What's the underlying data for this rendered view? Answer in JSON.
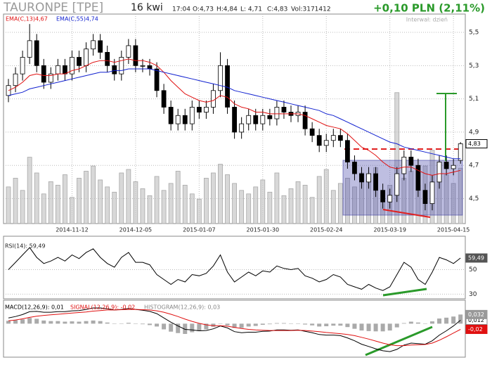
{
  "header": {
    "ticker": "TAURONPE [TPE]",
    "date": "16 kwi",
    "time": "17:04",
    "open": "O:4,73",
    "high": "H:4,84",
    "low": "L: 4,71",
    "close": "C:4,83",
    "volume": "Vol:3171412",
    "change": "+0,10 PLN (2,11%)",
    "interval": "Interwał: dzień"
  },
  "chart_data": [
    {
      "type": "candlestick",
      "open": [
        5.12,
        5.18,
        5.25,
        5.35,
        5.45,
        5.3,
        5.2,
        5.25,
        5.3,
        5.25,
        5.35,
        5.3,
        5.4,
        5.45,
        5.38,
        5.3,
        5.25,
        5.35,
        5.42,
        5.3,
        5.3,
        5.28,
        5.15,
        5.05,
        4.95,
        5.0,
        4.95,
        5.05,
        5.02,
        5.05,
        5.15,
        5.3,
        5.05,
        4.9,
        4.95,
        5.0,
        4.95,
        5.0,
        4.98,
        5.05,
        5.02,
        5.0,
        5.02,
        4.92,
        4.88,
        4.82,
        4.85,
        4.88,
        4.85,
        4.72,
        4.65,
        4.6,
        4.65,
        4.55,
        4.48,
        4.52,
        4.65,
        4.75,
        4.7,
        4.55,
        4.47,
        4.6,
        4.72,
        4.68,
        4.73
      ],
      "high": [
        5.22,
        5.29,
        5.39,
        5.55,
        5.49,
        5.34,
        5.29,
        5.34,
        5.34,
        5.39,
        5.39,
        5.44,
        5.49,
        5.49,
        5.42,
        5.34,
        5.39,
        5.46,
        5.46,
        5.34,
        5.34,
        5.32,
        5.19,
        5.09,
        5.04,
        5.04,
        5.09,
        5.09,
        5.09,
        5.19,
        5.38,
        5.34,
        5.09,
        4.99,
        5.04,
        5.04,
        5.04,
        5.04,
        5.09,
        5.09,
        5.06,
        5.06,
        5.06,
        4.96,
        4.92,
        4.89,
        4.92,
        4.92,
        4.89,
        4.76,
        4.69,
        4.69,
        4.69,
        4.59,
        4.56,
        4.69,
        4.79,
        4.79,
        4.74,
        4.59,
        4.64,
        4.76,
        4.76,
        4.74,
        4.84
      ],
      "low": [
        5.08,
        5.14,
        5.21,
        5.31,
        5.26,
        5.16,
        5.16,
        5.21,
        5.21,
        5.21,
        5.26,
        5.26,
        5.36,
        5.34,
        5.26,
        5.21,
        5.21,
        5.31,
        5.26,
        5.26,
        5.24,
        5.11,
        5.01,
        4.91,
        4.91,
        4.91,
        4.91,
        4.98,
        4.98,
        5.01,
        5.11,
        5.01,
        4.86,
        4.86,
        4.91,
        4.91,
        4.91,
        4.94,
        4.94,
        4.98,
        4.96,
        4.96,
        4.88,
        4.84,
        4.78,
        4.78,
        4.81,
        4.81,
        4.68,
        4.61,
        4.56,
        4.56,
        4.51,
        4.44,
        4.44,
        4.48,
        4.61,
        4.66,
        4.51,
        4.43,
        4.43,
        4.56,
        4.64,
        4.64,
        4.71
      ],
      "close": [
        5.18,
        5.25,
        5.35,
        5.45,
        5.3,
        5.2,
        5.25,
        5.3,
        5.25,
        5.35,
        5.3,
        5.4,
        5.45,
        5.38,
        5.3,
        5.25,
        5.35,
        5.42,
        5.3,
        5.3,
        5.28,
        5.15,
        5.05,
        4.95,
        5.0,
        4.95,
        5.05,
        5.02,
        5.05,
        5.15,
        5.3,
        5.05,
        4.9,
        4.95,
        5.0,
        4.95,
        5.0,
        4.98,
        5.05,
        5.02,
        5.0,
        5.02,
        4.92,
        4.88,
        4.82,
        4.85,
        4.88,
        4.85,
        4.72,
        4.65,
        4.6,
        4.65,
        4.55,
        4.48,
        4.52,
        4.65,
        4.75,
        4.7,
        4.55,
        4.47,
        4.6,
        4.72,
        4.68,
        4.7,
        4.83
      ],
      "last_label": "4,83",
      "volume": [
        2100000,
        2600000,
        1900000,
        3800000,
        2900000,
        1700000,
        2400000,
        2200000,
        2800000,
        1500000,
        2600000,
        3000000,
        3300000,
        2500000,
        2100000,
        1800000,
        2900000,
        3100000,
        2400000,
        2000000,
        1600000,
        2700000,
        1900000,
        2300000,
        3000000,
        2200000,
        1700000,
        1400000,
        2600000,
        2900000,
        3400000,
        2800000,
        2300000,
        1900000,
        1700000,
        2100000,
        2500000,
        1800000,
        2900000,
        1600000,
        2000000,
        2400000,
        2200000,
        1500000,
        2700000,
        3100000,
        1900000,
        2300000,
        2600000,
        2100000,
        2900000,
        2400000,
        3200000,
        1800000,
        2200000,
        7500000,
        2600000,
        3000000,
        2200000,
        3300000,
        4200000,
        2600000,
        2800000,
        2300000,
        3171412
      ],
      "volume_lim": [
        0,
        12000000
      ],
      "series": [
        {
          "name": "EMA(C,13)4,67",
          "color": "#e01010",
          "values": [
            5.15,
            5.17,
            5.2,
            5.24,
            5.25,
            5.24,
            5.24,
            5.25,
            5.25,
            5.27,
            5.28,
            5.3,
            5.32,
            5.33,
            5.33,
            5.32,
            5.33,
            5.34,
            5.33,
            5.33,
            5.32,
            5.3,
            5.26,
            5.21,
            5.17,
            5.13,
            5.11,
            5.09,
            5.08,
            5.09,
            5.12,
            5.11,
            5.07,
            5.05,
            5.04,
            5.02,
            5.02,
            5.01,
            5.01,
            5.01,
            5.01,
            5.01,
            5.0,
            4.98,
            4.96,
            4.94,
            4.93,
            4.92,
            4.89,
            4.85,
            4.81,
            4.79,
            4.76,
            4.72,
            4.69,
            4.68,
            4.69,
            4.69,
            4.67,
            4.65,
            4.64,
            4.65,
            4.65,
            4.66,
            4.67
          ]
        },
        {
          "name": "EMA(C,55)4,74",
          "color": "#1020d0",
          "values": [
            5.12,
            5.13,
            5.14,
            5.16,
            5.17,
            5.18,
            5.19,
            5.2,
            5.21,
            5.22,
            5.23,
            5.24,
            5.25,
            5.26,
            5.26,
            5.27,
            5.27,
            5.28,
            5.28,
            5.28,
            5.28,
            5.27,
            5.26,
            5.25,
            5.24,
            5.23,
            5.22,
            5.21,
            5.2,
            5.19,
            5.18,
            5.17,
            5.15,
            5.14,
            5.13,
            5.12,
            5.11,
            5.1,
            5.09,
            5.08,
            5.07,
            5.06,
            5.05,
            5.04,
            5.03,
            5.01,
            5.0,
            4.98,
            4.96,
            4.94,
            4.92,
            4.9,
            4.88,
            4.86,
            4.84,
            4.83,
            4.81,
            4.8,
            4.79,
            4.78,
            4.77,
            4.76,
            4.75,
            4.74,
            4.74
          ]
        }
      ],
      "ylim": [
        4.35,
        5.61
      ],
      "yticks": [
        {
          "value": 5.5,
          "label": "5,5"
        },
        {
          "value": 5.3,
          "label": "5,3"
        },
        {
          "value": 5.1,
          "label": "5,1"
        },
        {
          "value": 4.9,
          "label": "4,9"
        },
        {
          "value": 4.7,
          "label": "4,7"
        },
        {
          "value": 4.5,
          "label": "4,5"
        }
      ],
      "xticks": [
        {
          "value": 9,
          "label": "2014-11-12"
        },
        {
          "value": 18,
          "label": "2014-12-05"
        },
        {
          "value": 27,
          "label": "2015-01-07"
        },
        {
          "value": 36,
          "label": "2015-01-30"
        },
        {
          "value": 45,
          "label": "2015-02-24"
        },
        {
          "value": 54,
          "label": "2015-03-19"
        },
        {
          "value": 63,
          "label": "2015-04-15"
        }
      ],
      "grid": true
    },
    {
      "type": "line",
      "series": [
        {
          "name": "RSI(14): 59,49",
          "color": "#000000",
          "last_label": "59,49",
          "values": [
            50,
            56,
            62,
            68,
            60,
            55,
            57,
            60,
            57,
            62,
            59,
            64,
            67,
            60,
            55,
            52,
            60,
            64,
            56,
            56,
            54,
            46,
            42,
            38,
            42,
            40,
            46,
            45,
            47,
            53,
            62,
            48,
            40,
            44,
            48,
            45,
            49,
            48,
            53,
            51,
            50,
            51,
            45,
            43,
            40,
            42,
            46,
            44,
            38,
            36,
            34,
            38,
            35,
            33,
            36,
            46,
            56,
            52,
            42,
            38,
            48,
            60,
            58,
            55,
            59.49
          ]
        }
      ],
      "ylim": [
        26.8,
        72.1
      ],
      "yticks": [
        50,
        30
      ],
      "grid": true
    },
    {
      "type": "macd",
      "series": [
        {
          "name": "MACD(12,26,9): 0,01",
          "color": "#000000",
          "last_label": "0,012",
          "values": [
            0.02,
            0.025,
            0.032,
            0.042,
            0.043,
            0.04,
            0.04,
            0.042,
            0.042,
            0.045,
            0.046,
            0.05,
            0.055,
            0.055,
            0.052,
            0.048,
            0.05,
            0.053,
            0.05,
            0.047,
            0.043,
            0.035,
            0.02,
            0.005,
            -0.008,
            -0.02,
            -0.022,
            -0.025,
            -0.024,
            -0.018,
            -0.008,
            -0.015,
            -0.028,
            -0.032,
            -0.03,
            -0.03,
            -0.027,
            -0.026,
            -0.022,
            -0.022,
            -0.023,
            -0.022,
            -0.027,
            -0.032,
            -0.038,
            -0.04,
            -0.04,
            -0.042,
            -0.05,
            -0.06,
            -0.072,
            -0.08,
            -0.088,
            -0.095,
            -0.098,
            -0.09,
            -0.075,
            -0.068,
            -0.07,
            -0.072,
            -0.06,
            -0.04,
            -0.025,
            -0.008,
            0.012
          ]
        },
        {
          "name": "SIGNAL(12,26,9): -0,02",
          "color": "#e01010",
          "last_label": "-0,02",
          "values": [
            0.01,
            0.013,
            0.017,
            0.022,
            0.026,
            0.029,
            0.031,
            0.033,
            0.035,
            0.037,
            0.039,
            0.041,
            0.044,
            0.046,
            0.048,
            0.048,
            0.049,
            0.05,
            0.05,
            0.049,
            0.048,
            0.045,
            0.04,
            0.033,
            0.025,
            0.016,
            0.008,
            0.001,
            -0.004,
            -0.007,
            -0.007,
            -0.009,
            -0.013,
            -0.017,
            -0.02,
            -0.022,
            -0.023,
            -0.024,
            -0.024,
            -0.024,
            -0.024,
            -0.023,
            -0.024,
            -0.026,
            -0.028,
            -0.031,
            -0.033,
            -0.035,
            -0.038,
            -0.042,
            -0.048,
            -0.054,
            -0.061,
            -0.068,
            -0.074,
            -0.077,
            -0.077,
            -0.075,
            -0.074,
            -0.073,
            -0.068,
            -0.058,
            -0.046,
            -0.033,
            -0.02
          ]
        },
        {
          "name": "HISTOGRAM(12,26,9): 0,03",
          "color": "#aaaaaa",
          "last_label": "0,032",
          "values": [
            0.01,
            0.012,
            0.015,
            0.02,
            0.017,
            0.011,
            0.009,
            0.009,
            0.007,
            0.008,
            0.007,
            0.009,
            0.011,
            0.009,
            0.004,
            0.0,
            0.001,
            0.003,
            0.0,
            -0.002,
            -0.005,
            -0.01,
            -0.02,
            -0.028,
            -0.033,
            -0.036,
            -0.03,
            -0.026,
            -0.02,
            -0.011,
            -0.001,
            -0.006,
            -0.015,
            -0.015,
            -0.01,
            -0.008,
            -0.004,
            -0.002,
            0.002,
            0.002,
            0.001,
            0.001,
            -0.003,
            -0.006,
            -0.01,
            -0.009,
            -0.007,
            -0.007,
            -0.012,
            -0.018,
            -0.024,
            -0.026,
            -0.027,
            -0.027,
            -0.024,
            -0.013,
            0.002,
            0.007,
            0.004,
            0.001,
            0.008,
            0.018,
            0.021,
            0.025,
            0.032
          ]
        }
      ],
      "ylim": [
        -0.11,
        0.06
      ]
    }
  ]
}
